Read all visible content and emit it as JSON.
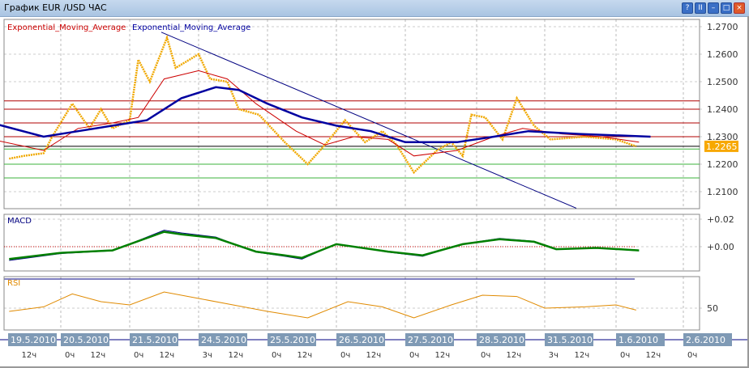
{
  "window": {
    "title": "График EUR /USD  ЧАС",
    "buttons": [
      {
        "name": "help",
        "glyph": "?"
      },
      {
        "name": "pause",
        "glyph": "II"
      },
      {
        "name": "minimize",
        "glyph": "–"
      },
      {
        "name": "maximize",
        "glyph": "□"
      },
      {
        "name": "close",
        "glyph": "×",
        "color": "#e05a2a"
      }
    ]
  },
  "legend": {
    "ema_fast": "Exponential_Moving_Average",
    "ema_slow": "Exponential_Moving_Average"
  },
  "colors": {
    "price": "#f0a800",
    "ema_fast": "#cc0000",
    "ema_slow": "#0000a0",
    "macd": "#000080",
    "signal": "#008000",
    "rsi": "#e08a00",
    "current_price_bg": "#f7a800"
  },
  "chart_data": {
    "type": "line",
    "price_axis": {
      "ticks": [
        "1.2700",
        "1.2600",
        "1.2500",
        "1.2400",
        "1.2300",
        "1.2200",
        "1.2100"
      ],
      "range": [
        1.2075,
        1.2725
      ]
    },
    "current_price": "1.2265",
    "price": [
      [
        "19.5 06",
        1.222
      ],
      [
        "19.5 11",
        1.223
      ],
      [
        "19.5 18",
        1.224
      ],
      [
        "19.5 21",
        1.23
      ],
      [
        "20.5 04",
        1.242
      ],
      [
        "20.5 10",
        1.233
      ],
      [
        "20.5 14",
        1.24
      ],
      [
        "20.5 18",
        1.233
      ],
      [
        "21.5 00",
        1.236
      ],
      [
        "21.5 03",
        1.258
      ],
      [
        "21.5 07",
        1.25
      ],
      [
        "21.5 13",
        1.266
      ],
      [
        "21.5 16",
        1.255
      ],
      [
        "24.5 00",
        1.26
      ],
      [
        "24.5 04",
        1.251
      ],
      [
        "24.5 10",
        1.25
      ],
      [
        "24.5 14",
        1.24
      ],
      [
        "24.5 21",
        1.238
      ],
      [
        "25.5 06",
        1.228
      ],
      [
        "25.5 14",
        1.22
      ],
      [
        "25.5 20",
        1.227
      ],
      [
        "26.5 03",
        1.236
      ],
      [
        "26.5 10",
        1.228
      ],
      [
        "26.5 16",
        1.232
      ],
      [
        "26.5 21",
        1.227
      ],
      [
        "27.5 03",
        1.217
      ],
      [
        "27.5 11",
        1.225
      ],
      [
        "27.5 16",
        1.228
      ],
      [
        "27.5 20",
        1.223
      ],
      [
        "27.5 23",
        1.238
      ],
      [
        "28.5 03",
        1.237
      ],
      [
        "28.5 09",
        1.229
      ],
      [
        "28.5 14",
        1.244
      ],
      [
        "28.5 20",
        1.234
      ],
      [
        "31.5 02",
        1.229
      ],
      [
        "31.5 14",
        1.23
      ],
      [
        "1.6 00",
        1.229
      ],
      [
        "1.6 07",
        1.2265
      ]
    ],
    "ema_fast": [
      [
        "19.5 00",
        1.229
      ],
      [
        "19.5 18",
        1.225
      ],
      [
        "20.5 06",
        1.233
      ],
      [
        "20.5 18",
        1.235
      ],
      [
        "21.5 03",
        1.237
      ],
      [
        "21.5 12",
        1.251
      ],
      [
        "24.5 00",
        1.254
      ],
      [
        "24.5 10",
        1.251
      ],
      [
        "24.5 20",
        1.242
      ],
      [
        "25.5 10",
        1.232
      ],
      [
        "25.5 20",
        1.227
      ],
      [
        "26.5 06",
        1.23
      ],
      [
        "26.5 18",
        1.229
      ],
      [
        "27.5 03",
        1.223
      ],
      [
        "27.5 18",
        1.225
      ],
      [
        "28.5 06",
        1.23
      ],
      [
        "28.5 16",
        1.233
      ],
      [
        "31.5 06",
        1.231
      ],
      [
        "31.5 20",
        1.23
      ],
      [
        "1.6 08",
        1.228
      ]
    ],
    "ema_slow": [
      [
        "19.5 00",
        1.235
      ],
      [
        "19.5 18",
        1.23
      ],
      [
        "20.5 06",
        1.232
      ],
      [
        "20.5 18",
        1.234
      ],
      [
        "21.5 06",
        1.236
      ],
      [
        "21.5 18",
        1.244
      ],
      [
        "24.5 06",
        1.248
      ],
      [
        "24.5 14",
        1.247
      ],
      [
        "25.5 00",
        1.242
      ],
      [
        "25.5 12",
        1.237
      ],
      [
        "26.5 00",
        1.234
      ],
      [
        "26.5 12",
        1.232
      ],
      [
        "27.5 00",
        1.228
      ],
      [
        "27.5 18",
        1.228
      ],
      [
        "28.5 06",
        1.23
      ],
      [
        "28.5 18",
        1.232
      ],
      [
        "31.5 12",
        1.231
      ],
      [
        "1.6 12",
        1.23
      ]
    ],
    "levels_red": [
      1.243,
      1.24,
      1.235,
      1.23
    ],
    "level_black": 1.2265,
    "levels_green": [
      1.2255,
      1.22,
      1.215
    ],
    "trendline": [
      [
        "21.5 11",
        1.268
      ],
      [
        "31.5 11",
        1.204
      ]
    ],
    "macd": {
      "label": "MACD",
      "ticks": [
        "+0.02",
        "+0.00"
      ],
      "values": [
        [
          "19.5 06",
          -0.01
        ],
        [
          "20.5 00",
          -0.005
        ],
        [
          "20.5 18",
          -0.003
        ],
        [
          "21.5 12",
          0.012
        ],
        [
          "21.5 18",
          0.01
        ],
        [
          "24.5 06",
          0.007
        ],
        [
          "24.5 20",
          -0.004
        ],
        [
          "25.5 06",
          -0.007
        ],
        [
          "25.5 12",
          -0.009
        ],
        [
          "26.5 00",
          0.002
        ],
        [
          "26.5 18",
          -0.004
        ],
        [
          "27.5 06",
          -0.007
        ],
        [
          "27.5 20",
          0.002
        ],
        [
          "28.5 08",
          0.006
        ],
        [
          "28.5 20",
          0.004
        ],
        [
          "31.5 04",
          -0.002
        ],
        [
          "31.5 18",
          -0.001
        ],
        [
          "1.6 08",
          -0.003
        ]
      ]
    },
    "rsi": {
      "label": "RSI",
      "ticks": [
        "50"
      ],
      "values": [
        [
          "19.5 06",
          45
        ],
        [
          "19.5 18",
          52
        ],
        [
          "20.5 04",
          72
        ],
        [
          "20.5 14",
          60
        ],
        [
          "21.5 00",
          55
        ],
        [
          "21.5 12",
          75
        ],
        [
          "24.5 00",
          65
        ],
        [
          "24.5 12",
          55
        ],
        [
          "25.5 00",
          45
        ],
        [
          "25.5 14",
          35
        ],
        [
          "26.5 04",
          60
        ],
        [
          "26.5 16",
          52
        ],
        [
          "27.5 03",
          35
        ],
        [
          "27.5 16",
          55
        ],
        [
          "28.5 02",
          70
        ],
        [
          "28.5 14",
          68
        ],
        [
          "31.5 00",
          50
        ],
        [
          "31.5 14",
          52
        ],
        [
          "1.6 00",
          55
        ],
        [
          "1.6 07",
          47
        ]
      ]
    },
    "dates": [
      "19.5.2010",
      "20.5.2010",
      "21.5.2010",
      "24.5.2010",
      "25.5.2010",
      "26.5.2010",
      "27.5.2010",
      "28.5.2010",
      "31.5.2010",
      "1.6.2010",
      "2.6.2010"
    ],
    "hours": [
      [
        "19.5",
        "12ч"
      ],
      [
        "20.5",
        "0ч"
      ],
      [
        "20.5",
        "12ч"
      ],
      [
        "21.5",
        "0ч"
      ],
      [
        "21.5",
        "12ч"
      ],
      [
        "24.5",
        "3ч"
      ],
      [
        "24.5",
        "12ч"
      ],
      [
        "25.5",
        "0ч"
      ],
      [
        "25.5",
        "12ч"
      ],
      [
        "26.5",
        "0ч"
      ],
      [
        "26.5",
        "12ч"
      ],
      [
        "27.5",
        "0ч"
      ],
      [
        "27.5",
        "12ч"
      ],
      [
        "28.5",
        "0ч"
      ],
      [
        "28.5",
        "12ч"
      ],
      [
        "31.5",
        "3ч"
      ],
      [
        "31.5",
        "12ч"
      ],
      [
        "1.6",
        "0ч"
      ],
      [
        "1.6",
        "12ч"
      ],
      [
        "2.6",
        "0ч"
      ]
    ]
  }
}
